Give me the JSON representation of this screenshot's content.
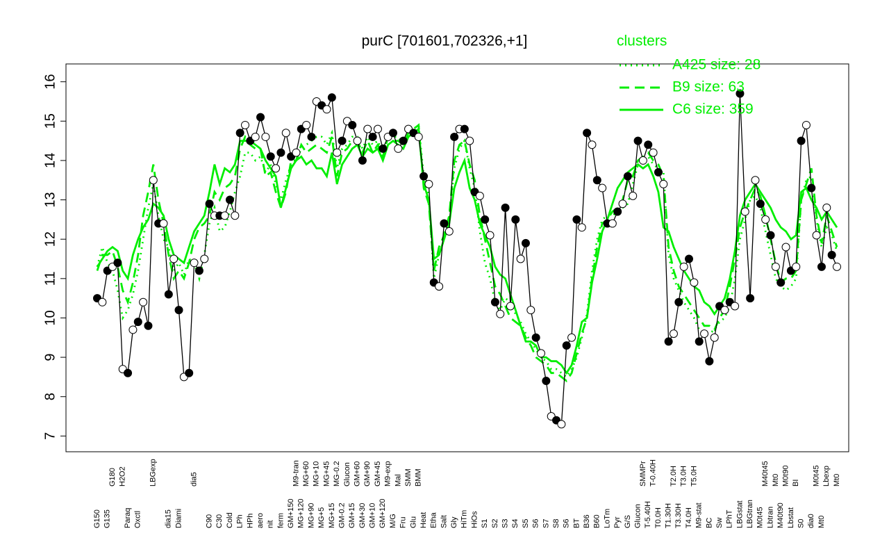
{
  "chart_data": {
    "type": "line",
    "title": "purC [701601,702326,+1]",
    "legend_title": "clusters",
    "legend": "top-right",
    "ylim": [
      6.6,
      16.4
    ],
    "yticks": [
      7,
      8,
      9,
      10,
      11,
      12,
      13,
      14,
      15,
      16
    ],
    "categories": [
      "G150",
      null,
      "G135",
      "G180",
      null,
      "H2O2",
      "Paraq",
      null,
      "Oxctl",
      null,
      null,
      "LBGexp",
      null,
      null,
      "dia15",
      null,
      "Diami",
      null,
      null,
      "dia5",
      null,
      null,
      "C90",
      null,
      "C30",
      null,
      "Cold",
      null,
      "LPh",
      null,
      "HPh",
      null,
      "aero",
      null,
      "nit",
      null,
      "ferm",
      null,
      "GM+150",
      "M9-tran",
      "MG+120",
      "MG+60",
      "MG+90",
      "MG+10",
      "MG+5",
      "MG+45",
      "MG+15",
      "MG-0.2",
      "GM-0.2",
      "Glucon",
      "GM+15",
      "GM+60",
      "GM+30",
      "GM+90",
      "GM+10",
      "GM+45",
      "GM+120",
      "M9-exp",
      "M/G",
      "Mal",
      "Fru",
      "SMM",
      "Glu",
      "BMM",
      "Heat",
      null,
      "Etha",
      null,
      "Salt",
      null,
      "Gly",
      null,
      "HiTm",
      null,
      "HiOs",
      null,
      "S1",
      null,
      "S2",
      null,
      "S3",
      null,
      "S4",
      null,
      "S5",
      null,
      "S6",
      null,
      "S7",
      null,
      "S8",
      null,
      "S6",
      null,
      "BT",
      null,
      "B36",
      null,
      "B60",
      null,
      "LoTm",
      null,
      "Pyr",
      null,
      "G/S",
      null,
      "Glucon",
      "SMMPr",
      "T-5.40H",
      "T-0.40H",
      "T0.0H",
      null,
      "T1.30H",
      "T2.0H",
      "T3.30H",
      "T3.0H",
      "T4.0H",
      "T5.0H",
      "M9-stat",
      null,
      "BC",
      null,
      "Sw",
      null,
      "LPhT",
      null,
      "LBGstat",
      null,
      "LBGtran",
      null,
      "M0t45",
      "M40t45",
      "Lbtran",
      "Mt0",
      "M40t90",
      "M0t90",
      "Lbstat",
      "BI",
      "S0",
      null,
      "dia0",
      "M0t45",
      "Mt0",
      "Lbexp",
      null,
      "Mt0"
    ],
    "series": [
      {
        "name": null,
        "color": "#000000",
        "dash": "solid",
        "markers": true,
        "values": [
          10.5,
          10.4,
          11.2,
          11.3,
          11.4,
          8.7,
          8.6,
          9.7,
          9.9,
          10.4,
          9.8,
          13.5,
          12.4,
          12.4,
          10.6,
          11.5,
          10.2,
          8.5,
          8.6,
          11.4,
          11.2,
          11.5,
          12.9,
          12.6,
          12.6,
          12.6,
          13.0,
          12.6,
          14.7,
          14.9,
          14.5,
          14.6,
          15.1,
          14.6,
          14.1,
          13.8,
          14.2,
          14.7,
          14.1,
          14.2,
          14.8,
          14.9,
          14.6,
          15.5,
          15.4,
          15.3,
          15.6,
          14.2,
          14.5,
          15.0,
          14.9,
          14.5,
          14.0,
          14.8,
          14.6,
          14.8,
          14.3,
          14.6,
          14.7,
          14.3,
          14.5,
          14.8,
          14.7,
          14.6,
          13.6,
          13.4,
          10.9,
          10.8,
          12.4,
          12.2,
          14.6,
          14.8,
          14.8,
          14.5,
          13.2,
          13.1,
          12.5,
          12.1,
          10.4,
          10.1,
          12.8,
          10.3,
          12.5,
          11.5,
          11.9,
          10.2,
          9.5,
          9.1,
          8.4,
          7.5,
          7.4,
          7.3,
          9.3,
          9.5,
          12.5,
          12.3,
          14.7,
          14.4,
          13.5,
          13.3,
          12.4,
          12.4,
          12.7,
          12.9,
          13.6,
          13.1,
          14.5,
          14.0,
          14.4,
          14.2,
          13.7,
          13.4,
          9.4,
          9.6,
          10.4,
          11.3,
          11.5,
          10.9,
          9.4,
          9.6,
          8.9,
          9.5,
          10.3,
          10.2,
          10.4,
          10.3,
          15.7,
          12.7,
          10.5,
          13.5,
          12.9,
          12.5,
          12.1,
          11.3,
          10.9,
          11.8,
          11.2,
          11.3,
          14.5,
          14.9,
          13.3,
          12.1,
          11.3,
          12.8,
          11.6,
          11.3
        ]
      },
      {
        "name": "A425 size: 28",
        "color": "#00ee00",
        "dash": "dotted",
        "markers": false,
        "values": [
          11.3,
          11.8,
          11.4,
          11.2,
          10.7,
          10.0,
          10.2,
          10.6,
          11.2,
          12.0,
          12.8,
          13.4,
          12.6,
          12.0,
          11.8,
          11.2,
          11.4,
          11.1,
          11.5,
          11.4,
          11.0,
          11.6,
          12.4,
          12.8,
          12.2,
          12.3,
          12.7,
          13.2,
          13.6,
          14.2,
          14.2,
          14.0,
          14.1,
          13.7,
          13.9,
          13.4,
          13.0,
          13.5,
          13.9,
          14.0,
          14.3,
          14.4,
          14.5,
          14.6,
          14.6,
          14.4,
          14.7,
          13.8,
          14.3,
          14.4,
          14.6,
          14.6,
          14.3,
          14.6,
          14.4,
          14.5,
          14.2,
          14.6,
          14.6,
          14.6,
          14.4,
          14.6,
          14.8,
          14.9,
          13.6,
          13.1,
          11.0,
          11.6,
          12.0,
          12.5,
          13.8,
          14.3,
          14.5,
          13.8,
          13.3,
          12.2,
          11.4,
          11.0,
          10.4,
          10.2,
          10.5,
          10.4,
          10.1,
          9.9,
          9.6,
          9.4,
          9.2,
          9.0,
          8.9,
          8.7,
          8.7,
          8.6,
          8.5,
          8.7,
          9.0,
          9.5,
          10.1,
          11.2,
          12.0,
          12.5,
          12.6,
          12.6,
          12.7,
          12.8,
          12.9,
          13.4,
          13.9,
          14.0,
          14.1,
          13.9,
          13.8,
          13.7,
          11.6,
          11.0,
          10.7,
          10.4,
          10.2,
          10.0,
          9.7,
          9.6,
          9.6,
          9.7,
          9.9,
          10.0,
          10.3,
          11.0,
          12.0,
          12.5,
          13.0,
          13.1,
          12.8,
          12.2,
          11.6,
          11.0,
          10.8,
          10.7,
          10.8,
          11.0,
          13.0,
          13.5,
          13.6,
          12.5,
          11.8,
          12.3,
          12.1,
          11.7
        ]
      },
      {
        "name": "B9 size: 63",
        "color": "#00ee00",
        "dash": "dashed",
        "markers": false,
        "values": [
          11.2,
          11.6,
          11.6,
          11.7,
          11.3,
          10.7,
          10.4,
          10.9,
          11.6,
          12.6,
          13.2,
          13.9,
          13.0,
          12.4,
          11.6,
          11.0,
          11.2,
          11.0,
          11.4,
          12.0,
          12.3,
          12.4,
          12.6,
          13.2,
          13.0,
          13.3,
          13.4,
          13.6,
          14.3,
          14.6,
          14.4,
          14.3,
          14.3,
          13.6,
          13.7,
          13.2,
          12.8,
          13.2,
          14.0,
          14.0,
          14.4,
          14.2,
          14.3,
          14.4,
          14.3,
          14.2,
          14.6,
          13.6,
          14.2,
          14.3,
          14.5,
          14.5,
          14.2,
          14.5,
          14.2,
          14.4,
          14.1,
          14.6,
          14.5,
          14.5,
          14.4,
          14.7,
          14.8,
          14.9,
          13.3,
          12.9,
          11.2,
          11.8,
          12.1,
          12.6,
          14.0,
          14.4,
          14.5,
          13.9,
          13.5,
          12.6,
          12.0,
          11.4,
          10.8,
          10.6,
          10.3,
          10.0,
          9.9,
          9.8,
          9.5,
          9.3,
          9.0,
          8.9,
          8.8,
          8.6,
          8.6,
          8.5,
          8.4,
          8.6,
          9.1,
          9.6,
          10.0,
          11.0,
          11.8,
          12.4,
          12.5,
          12.7,
          12.8,
          13.0,
          13.5,
          13.6,
          14.0,
          14.1,
          14.2,
          14.0,
          13.9,
          13.6,
          11.8,
          11.2,
          10.8,
          10.6,
          10.4,
          10.2,
          10.0,
          9.8,
          9.8,
          9.7,
          10.0,
          10.2,
          10.8,
          11.5,
          12.3,
          12.7,
          13.0,
          13.3,
          13.1,
          12.6,
          12.0,
          11.4,
          10.9,
          11.0,
          11.0,
          11.2,
          13.0,
          13.4,
          13.8,
          12.6,
          11.9,
          12.6,
          12.2,
          11.8
        ]
      },
      {
        "name": "C6 size: 359",
        "color": "#00ee00",
        "dash": "solid",
        "markers": false,
        "values": [
          11.3,
          11.5,
          11.7,
          11.8,
          11.7,
          11.2,
          11.0,
          11.6,
          12.0,
          12.3,
          12.5,
          12.9,
          12.8,
          12.6,
          12.0,
          11.6,
          11.5,
          11.4,
          11.8,
          12.2,
          12.4,
          12.6,
          13.2,
          13.9,
          13.4,
          13.8,
          13.7,
          13.9,
          14.5,
          14.5,
          14.5,
          14.4,
          14.3,
          14.0,
          13.8,
          13.6,
          12.8,
          13.3,
          13.8,
          14.0,
          14.1,
          13.9,
          14.0,
          13.8,
          13.8,
          13.6,
          14.2,
          13.4,
          13.9,
          14.1,
          14.3,
          14.4,
          14.1,
          14.3,
          14.2,
          14.3,
          14.0,
          14.4,
          14.5,
          14.4,
          14.3,
          14.6,
          14.7,
          14.8,
          13.4,
          13.0,
          11.5,
          11.6,
          12.0,
          12.4,
          13.3,
          13.7,
          14.0,
          13.3,
          13.0,
          12.4,
          12.1,
          11.8,
          11.3,
          11.1,
          11.0,
          10.6,
          10.2,
          9.8,
          9.4,
          9.4,
          9.3,
          9.0,
          9.0,
          8.9,
          8.9,
          8.8,
          8.6,
          8.8,
          9.3,
          9.9,
          10.0,
          10.9,
          11.5,
          12.2,
          12.5,
          12.9,
          13.3,
          13.5,
          13.7,
          13.8,
          13.9,
          13.8,
          13.9,
          13.6,
          13.2,
          12.3,
          12.2,
          11.8,
          11.5,
          11.2,
          11.0,
          10.8,
          10.7,
          10.4,
          10.3,
          10.1,
          10.3,
          10.5,
          11.0,
          11.7,
          12.6,
          13.0,
          13.2,
          13.4,
          13.2,
          13.0,
          12.8,
          12.5,
          12.3,
          12.2,
          12.0,
          12.1,
          13.2,
          13.3,
          13.0,
          12.8,
          12.5,
          12.7,
          12.5,
          12.3
        ]
      }
    ]
  }
}
